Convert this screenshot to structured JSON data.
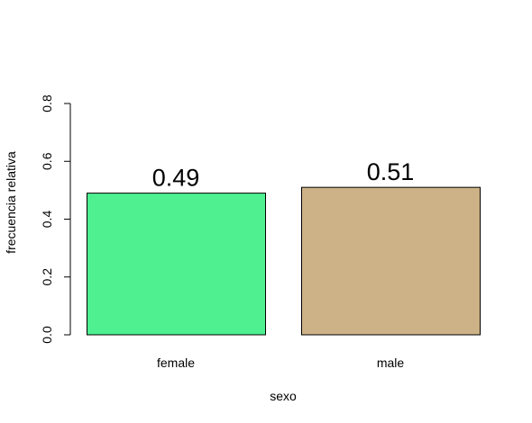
{
  "chart_data": {
    "type": "bar",
    "title": "",
    "xlabel": "sexo",
    "ylabel": "frecuencia relativa",
    "categories": [
      "female",
      "male"
    ],
    "values": [
      0.49,
      0.51
    ],
    "data_labels": [
      "0.49",
      "0.51"
    ],
    "colors": [
      "#4ef090",
      "#cdb287"
    ],
    "ylim": [
      0,
      0.8
    ],
    "yticks": [
      0.0,
      0.2,
      0.4,
      0.6,
      0.8
    ],
    "ytick_labels": [
      "0.0",
      "0.2",
      "0.4",
      "0.6",
      "0.8"
    ],
    "grid": false,
    "legend": "none"
  }
}
